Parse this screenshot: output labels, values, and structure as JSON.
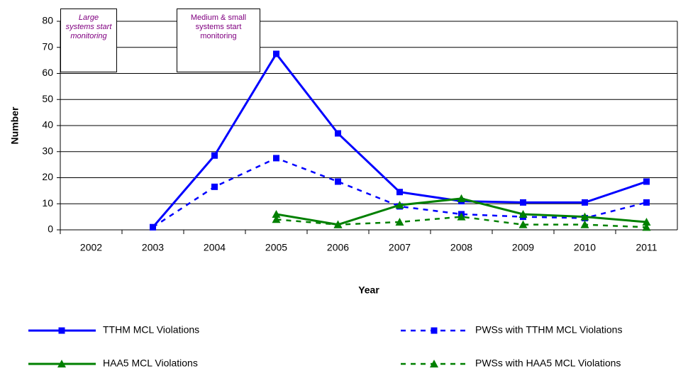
{
  "chart_data": {
    "type": "line",
    "x_label": "Year",
    "y_label": "Number",
    "categories": [
      "2002",
      "2003",
      "2004",
      "2005",
      "2006",
      "2007",
      "2008",
      "2009",
      "2010",
      "2011"
    ],
    "ylim": [
      0,
      80
    ],
    "yticks": [
      0,
      10,
      20,
      30,
      40,
      50,
      60,
      70,
      80
    ],
    "grid": true,
    "series": [
      {
        "name": "TTHM MCL Violations",
        "color": "#0000ff",
        "dashed": false,
        "marker": "square",
        "values": [
          null,
          1,
          28.5,
          67.5,
          37,
          14.5,
          11,
          10.5,
          10.5,
          18.5
        ]
      },
      {
        "name": "PWSs with TTHM MCL Violations",
        "color": "#0000ff",
        "dashed": true,
        "marker": "square",
        "values": [
          null,
          1,
          16.5,
          27.5,
          18.5,
          9,
          6,
          5,
          4.5,
          10.5
        ]
      },
      {
        "name": "HAA5 MCL Violations",
        "color": "#008000",
        "dashed": false,
        "marker": "triangle",
        "values": [
          null,
          null,
          null,
          6,
          2,
          9.5,
          12,
          6,
          5,
          3
        ]
      },
      {
        "name": "PWSs with HAA5 MCL Violations",
        "color": "#008000",
        "dashed": true,
        "marker": "triangle",
        "values": [
          null,
          null,
          null,
          4,
          2,
          3,
          5,
          2,
          2,
          1
        ]
      }
    ],
    "annotations": [
      "Large systems start monitoring",
      "Medium & small systems start monitoring"
    ]
  }
}
